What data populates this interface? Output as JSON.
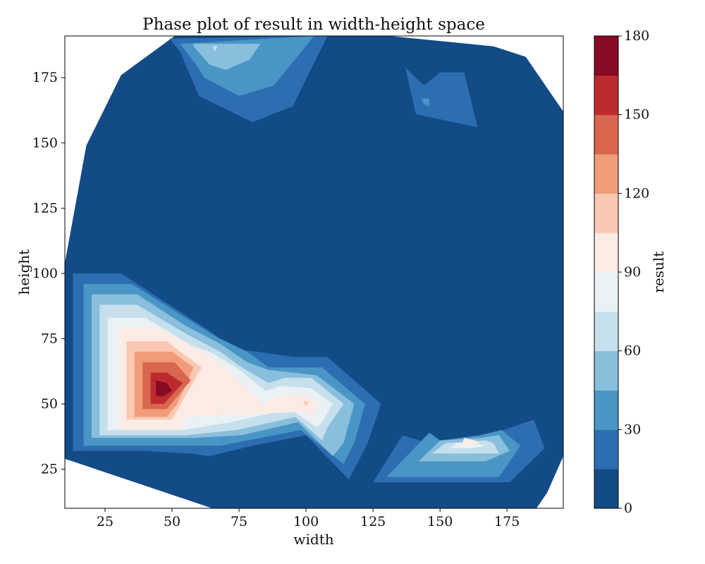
{
  "chart_data": {
    "type": "contourf",
    "title": "Phase plot of result in width-height space",
    "xlabel": "width",
    "ylabel": "height",
    "xlim": [
      10,
      196
    ],
    "ylim": [
      10,
      191
    ],
    "xticks": [
      25,
      50,
      75,
      100,
      125,
      150,
      175
    ],
    "yticks": [
      25,
      50,
      75,
      100,
      125,
      150,
      175
    ],
    "grid": false,
    "colorbar": {
      "label": "result",
      "range": [
        0,
        180
      ],
      "ticks": [
        0,
        30,
        60,
        90,
        120,
        150,
        180
      ],
      "levels": [
        0,
        15,
        30,
        45,
        60,
        75,
        90,
        105,
        120,
        135,
        150,
        165,
        180
      ],
      "colors": [
        "#134b87",
        "#2c6eb1",
        "#4995c6",
        "#89bedc",
        "#c5dfec",
        "#e9f1f5",
        "#faebe4",
        "#f9c8b2",
        "#f09c7b",
        "#d9664f",
        "#bd2b2e",
        "#860a24"
      ]
    },
    "hull": [
      [
        10,
        29
      ],
      [
        10,
        104
      ],
      [
        18,
        149
      ],
      [
        31,
        176
      ],
      [
        51,
        191
      ],
      [
        88,
        191
      ],
      [
        131,
        191
      ],
      [
        170,
        187
      ],
      [
        182,
        183
      ],
      [
        196,
        162
      ],
      [
        196,
        30
      ],
      [
        190,
        16
      ],
      [
        186,
        10
      ],
      [
        65,
        10
      ]
    ],
    "peaks": [
      {
        "location": [
          47,
          57
        ],
        "value": 172
      },
      {
        "location": [
          100,
          51
        ],
        "value": 112
      },
      {
        "location": [
          66,
          188
        ],
        "value": 78
      },
      {
        "location": [
          159,
          38
        ],
        "value": 84
      },
      {
        "location": [
          147,
          167
        ],
        "value": 36
      }
    ],
    "contours": [
      {
        "level": 1,
        "points": [
          [
            13,
            100
          ],
          [
            31,
            100
          ],
          [
            49,
            88
          ],
          [
            64,
            78
          ],
          [
            73,
            71
          ],
          [
            82,
            70
          ],
          [
            95,
            68
          ],
          [
            108,
            68
          ],
          [
            128,
            50
          ],
          [
            123,
            35
          ],
          [
            116,
            21
          ],
          [
            100,
            38
          ],
          [
            80,
            34
          ],
          [
            64,
            30
          ],
          [
            57,
            31
          ],
          [
            40,
            32
          ],
          [
            13,
            32
          ]
        ]
      },
      {
        "level": 2,
        "points": [
          [
            17,
            96
          ],
          [
            35,
            96
          ],
          [
            52,
            85
          ],
          [
            66,
            76
          ],
          [
            78,
            70
          ],
          [
            86,
            64
          ],
          [
            106,
            64
          ],
          [
            122,
            50
          ],
          [
            118,
            35
          ],
          [
            114,
            27
          ],
          [
            98,
            40
          ],
          [
            68,
            34
          ],
          [
            57,
            34
          ],
          [
            32,
            34
          ],
          [
            17,
            34
          ]
        ]
      },
      {
        "level": 3,
        "points": [
          [
            20,
            92
          ],
          [
            37,
            92
          ],
          [
            55,
            80
          ],
          [
            68,
            73
          ],
          [
            78,
            66
          ],
          [
            86,
            63
          ],
          [
            104,
            61
          ],
          [
            118,
            50
          ],
          [
            114,
            35
          ],
          [
            110,
            30
          ],
          [
            97,
            43
          ],
          [
            76,
            38
          ],
          [
            58,
            37
          ],
          [
            37,
            37
          ],
          [
            20,
            37
          ]
        ]
      },
      {
        "level": 4,
        "points": [
          [
            23,
            88
          ],
          [
            37,
            88
          ],
          [
            55,
            77
          ],
          [
            68,
            70
          ],
          [
            76,
            64
          ],
          [
            86,
            58
          ],
          [
            92,
            60
          ],
          [
            102,
            60
          ],
          [
            114,
            50
          ],
          [
            108,
            41
          ],
          [
            106,
            36
          ],
          [
            96,
            45
          ],
          [
            74,
            40
          ],
          [
            55,
            38
          ],
          [
            23,
            38
          ]
        ]
      },
      {
        "level": 5,
        "points": [
          [
            26,
            83
          ],
          [
            40,
            83
          ],
          [
            58,
            72
          ],
          [
            64,
            70
          ],
          [
            74,
            64
          ],
          [
            85,
            55
          ],
          [
            91,
            57
          ],
          [
            102,
            56
          ],
          [
            110,
            50
          ],
          [
            106,
            43
          ],
          [
            104,
            41
          ],
          [
            94,
            48
          ],
          [
            72,
            43
          ],
          [
            54,
            40
          ],
          [
            26,
            40
          ]
        ]
      },
      {
        "level": 6,
        "points": [
          [
            30,
            79
          ],
          [
            45,
            79
          ],
          [
            63,
            69
          ],
          [
            70,
            64
          ],
          [
            84,
            50
          ],
          [
            90,
            53
          ],
          [
            99,
            54
          ],
          [
            105,
            50
          ],
          [
            102,
            45
          ],
          [
            98,
            47
          ],
          [
            80,
            46
          ],
          [
            55,
            45
          ],
          [
            54,
            40
          ],
          [
            30,
            40
          ]
        ]
      },
      {
        "level": 7,
        "points": [
          [
            33,
            74
          ],
          [
            48,
            74
          ],
          [
            61,
            64
          ],
          [
            55,
            53
          ],
          [
            50,
            44
          ],
          [
            33,
            44
          ]
        ]
      },
      {
        "level": 8,
        "points": [
          [
            36,
            70
          ],
          [
            50,
            70
          ],
          [
            58,
            64
          ],
          [
            52,
            50
          ],
          [
            48,
            45
          ],
          [
            36,
            45
          ]
        ]
      },
      {
        "level": 9,
        "points": [
          [
            39,
            66
          ],
          [
            51,
            66
          ],
          [
            57,
            59
          ],
          [
            48,
            48
          ],
          [
            39,
            48
          ]
        ]
      },
      {
        "level": 10,
        "points": [
          [
            42,
            62
          ],
          [
            48,
            62
          ],
          [
            54,
            58
          ],
          [
            47,
            50
          ],
          [
            42,
            50
          ]
        ]
      },
      {
        "level": 11,
        "points": [
          [
            44,
            59
          ],
          [
            48,
            58
          ],
          [
            50,
            55
          ],
          [
            47,
            53
          ],
          [
            44,
            53
          ]
        ]
      },
      {
        "level": 6,
        "points": [
          [
            96,
            53
          ],
          [
            101,
            53
          ],
          [
            103,
            48
          ],
          [
            97,
            48
          ]
        ]
      },
      {
        "level": 7,
        "points": [
          [
            99,
            51
          ],
          [
            101,
            51
          ],
          [
            100,
            49
          ]
        ]
      },
      {
        "level": 1,
        "points": [
          [
            49,
            190
          ],
          [
            53,
            185
          ],
          [
            60,
            168
          ],
          [
            80,
            158
          ],
          [
            95,
            164
          ],
          [
            108,
            191
          ]
        ]
      },
      {
        "level": 2,
        "points": [
          [
            53,
            188
          ],
          [
            59,
            180
          ],
          [
            62,
            175
          ],
          [
            75,
            168
          ],
          [
            88,
            172
          ],
          [
            103,
            191
          ]
        ]
      },
      {
        "level": 3,
        "points": [
          [
            58,
            187
          ],
          [
            64,
            180
          ],
          [
            70,
            178
          ],
          [
            79,
            182
          ],
          [
            83,
            188
          ],
          [
            58,
            188
          ]
        ]
      },
      {
        "level": 4,
        "points": [
          [
            65,
            187
          ],
          [
            67,
            187
          ],
          [
            66,
            185
          ]
        ]
      },
      {
        "level": 1,
        "points": [
          [
            137,
            179
          ],
          [
            144,
            172
          ],
          [
            150,
            177
          ],
          [
            159,
            177
          ],
          [
            164,
            156
          ],
          [
            141,
            161
          ]
        ]
      },
      {
        "level": 2,
        "points": [
          [
            143,
            167
          ],
          [
            146,
            167
          ],
          [
            146,
            164
          ],
          [
            144,
            165
          ]
        ]
      },
      {
        "level": 1,
        "points": [
          [
            136,
            38
          ],
          [
            152,
            33
          ],
          [
            168,
            38
          ],
          [
            185,
            44
          ],
          [
            189,
            33
          ],
          [
            176,
            20
          ],
          [
            125,
            20
          ]
        ]
      },
      {
        "level": 2,
        "points": [
          [
            146,
            39
          ],
          [
            150,
            36
          ],
          [
            165,
            38
          ],
          [
            173,
            40
          ],
          [
            180,
            34
          ],
          [
            172,
            22
          ],
          [
            130,
            22
          ]
        ]
      },
      {
        "level": 3,
        "points": [
          [
            150,
            36
          ],
          [
            165,
            37
          ],
          [
            172,
            38
          ],
          [
            176,
            32
          ],
          [
            167,
            28
          ],
          [
            142,
            28
          ]
        ]
      },
      {
        "level": 4,
        "points": [
          [
            152,
            35
          ],
          [
            167,
            36
          ],
          [
            170,
            35
          ],
          [
            172,
            31
          ],
          [
            147,
            31
          ]
        ]
      },
      {
        "level": 5,
        "points": [
          [
            156,
            35
          ],
          [
            162,
            35
          ],
          [
            167,
            34
          ],
          [
            161,
            33
          ],
          [
            154,
            33
          ]
        ]
      },
      {
        "level": 6,
        "points": [
          [
            159,
            37
          ],
          [
            163,
            36
          ],
          [
            165,
            35
          ],
          [
            160,
            34
          ],
          [
            158,
            34
          ]
        ]
      }
    ]
  }
}
